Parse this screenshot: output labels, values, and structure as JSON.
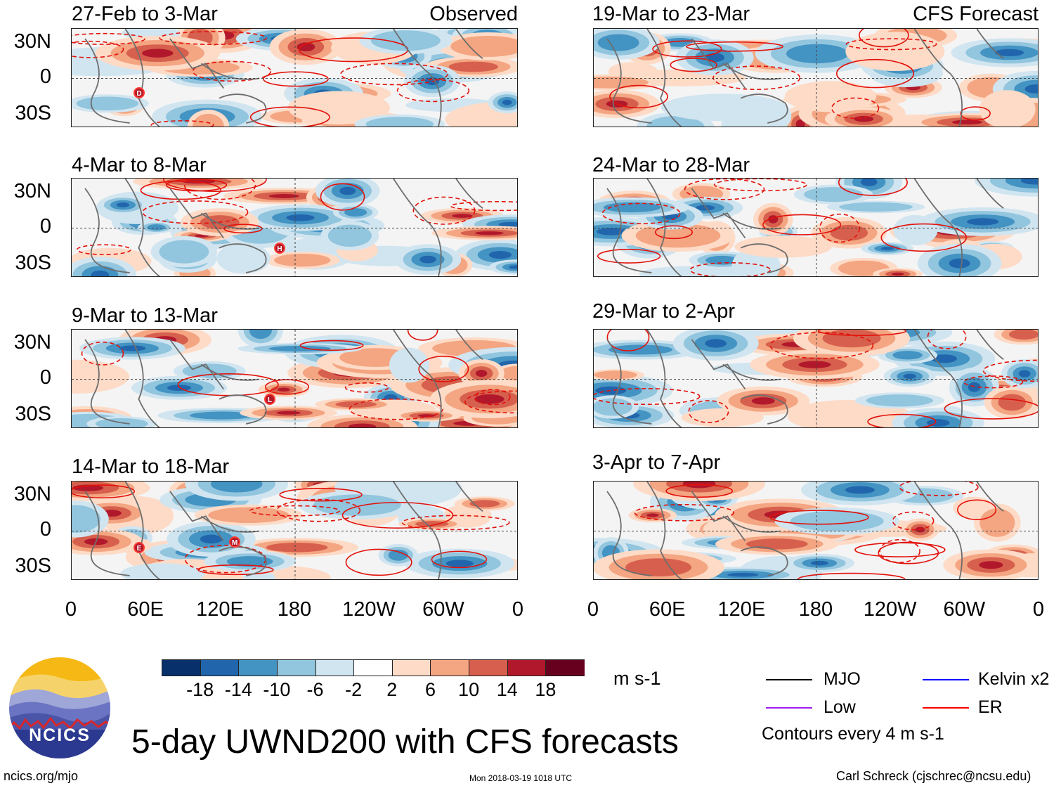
{
  "title": "5-day UWND200 with CFS forecasts",
  "site": "ncics.org/mjo",
  "timestamp": "Mon 2018-03-19 1018 UTC",
  "author": "Carl Schreck (cjschrec@ncsu.edu)",
  "logo_text": "NCICS",
  "y_ticks": [
    "30N",
    "0",
    "30S"
  ],
  "x_ticks": [
    "0",
    "60E",
    "120E",
    "180",
    "120W",
    "60W",
    "0"
  ],
  "left_column": {
    "label": "Observed",
    "panels": [
      {
        "title": "27-Feb to 3-Mar"
      },
      {
        "title": "4-Mar to 8-Mar"
      },
      {
        "title": "9-Mar to 13-Mar"
      },
      {
        "title": "14-Mar to 18-Mar"
      }
    ]
  },
  "right_column": {
    "label": "CFS Forecast",
    "panels": [
      {
        "title": "19-Mar to 23-Mar"
      },
      {
        "title": "24-Mar to 28-Mar"
      },
      {
        "title": "29-Mar to 2-Apr"
      },
      {
        "title": "3-Apr to 7-Apr"
      }
    ]
  },
  "colorbar": {
    "unit": "m s-1",
    "labels": [
      "-18",
      "-14",
      "-10",
      "-6",
      "-2",
      "2",
      "6",
      "10",
      "14",
      "18"
    ],
    "colors": [
      "#08306b",
      "#2166ac",
      "#4393c3",
      "#92c5de",
      "#d1e5f0",
      "#ffffff",
      "#fddbc7",
      "#f4a582",
      "#d6604d",
      "#b2182b",
      "#67001f"
    ]
  },
  "legend": {
    "items": [
      {
        "label": "MJO",
        "color": "#000000"
      },
      {
        "label": "Kelvin x2",
        "color": "#0000ff"
      },
      {
        "label": "Low",
        "color": "#a020f0"
      },
      {
        "label": "ER",
        "color": "#ff0000"
      }
    ],
    "note": "Contours every 4 m s-1"
  },
  "tc_markers": [
    {
      "panel": "left-0",
      "letter": "D"
    },
    {
      "panel": "left-1",
      "letter": "H"
    },
    {
      "panel": "left-2",
      "letter": "L"
    },
    {
      "panel": "left-3",
      "letter": "E"
    },
    {
      "panel": "left-3",
      "letter": "M"
    }
  ]
}
